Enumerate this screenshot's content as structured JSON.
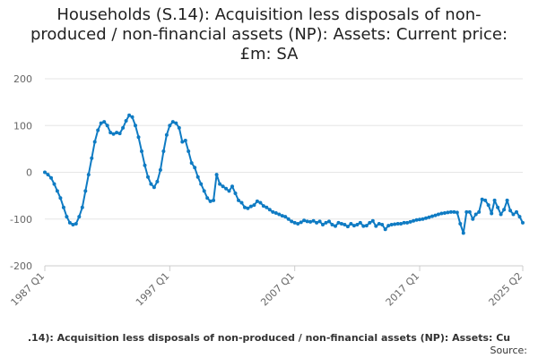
{
  "chart_data": {
    "type": "line",
    "title_lines": [
      "Households (S.14): Acquisition less disposals of non-",
      "produced / non-financial assets (NP): Assets: Current price:",
      "£m: SA"
    ],
    "bottom_caption": ".14): Acquisition less disposals of non-produced / non-financial assets (NP): Assets: Cu",
    "source_label": "Source:",
    "xlabel": "",
    "ylabel": "",
    "ylim": [
      -200,
      200
    ],
    "yticks": [
      200,
      100,
      0,
      -100,
      -200
    ],
    "x_range": [
      1987.0,
      2025.25
    ],
    "x_ticks": [
      {
        "label": "1987 Q1",
        "value": 1987.0
      },
      {
        "label": "1997 Q1",
        "value": 1997.0
      },
      {
        "label": "2007 Q1",
        "value": 2007.0
      },
      {
        "label": "2017 Q1",
        "value": 2017.0
      },
      {
        "label": "2025 Q2",
        "value": 2025.25
      }
    ],
    "grid": true,
    "legend": "none",
    "series_color": "#0f7bc3",
    "points": [
      [
        1987.0,
        0
      ],
      [
        1987.25,
        -5
      ],
      [
        1987.5,
        -12
      ],
      [
        1987.75,
        -25
      ],
      [
        1988.0,
        -40
      ],
      [
        1988.25,
        -55
      ],
      [
        1988.5,
        -75
      ],
      [
        1988.75,
        -95
      ],
      [
        1989.0,
        -108
      ],
      [
        1989.25,
        -112
      ],
      [
        1989.5,
        -110
      ],
      [
        1989.75,
        -95
      ],
      [
        1990.0,
        -75
      ],
      [
        1990.25,
        -40
      ],
      [
        1990.5,
        -5
      ],
      [
        1990.75,
        30
      ],
      [
        1991.0,
        65
      ],
      [
        1991.25,
        90
      ],
      [
        1991.5,
        105
      ],
      [
        1991.75,
        108
      ],
      [
        1992.0,
        100
      ],
      [
        1992.25,
        85
      ],
      [
        1992.5,
        82
      ],
      [
        1992.75,
        85
      ],
      [
        1993.0,
        83
      ],
      [
        1993.25,
        95
      ],
      [
        1993.5,
        110
      ],
      [
        1993.75,
        122
      ],
      [
        1994.0,
        118
      ],
      [
        1994.25,
        100
      ],
      [
        1994.5,
        75
      ],
      [
        1994.75,
        45
      ],
      [
        1995.0,
        15
      ],
      [
        1995.25,
        -10
      ],
      [
        1995.5,
        -25
      ],
      [
        1995.75,
        -32
      ],
      [
        1996.0,
        -20
      ],
      [
        1996.25,
        5
      ],
      [
        1996.5,
        45
      ],
      [
        1996.75,
        80
      ],
      [
        1997.0,
        100
      ],
      [
        1997.25,
        108
      ],
      [
        1997.5,
        105
      ],
      [
        1997.75,
        95
      ],
      [
        1998.0,
        65
      ],
      [
        1998.25,
        68
      ],
      [
        1998.5,
        45
      ],
      [
        1998.75,
        20
      ],
      [
        1999.0,
        10
      ],
      [
        1999.25,
        -10
      ],
      [
        1999.5,
        -25
      ],
      [
        1999.75,
        -40
      ],
      [
        2000.0,
        -55
      ],
      [
        2000.25,
        -62
      ],
      [
        2000.5,
        -60
      ],
      [
        2000.75,
        -5
      ],
      [
        2001.0,
        -25
      ],
      [
        2001.25,
        -30
      ],
      [
        2001.5,
        -35
      ],
      [
        2001.75,
        -40
      ],
      [
        2002.0,
        -30
      ],
      [
        2002.25,
        -45
      ],
      [
        2002.5,
        -60
      ],
      [
        2002.75,
        -65
      ],
      [
        2003.0,
        -75
      ],
      [
        2003.25,
        -77
      ],
      [
        2003.5,
        -73
      ],
      [
        2003.75,
        -70
      ],
      [
        2004.0,
        -62
      ],
      [
        2004.25,
        -65
      ],
      [
        2004.5,
        -72
      ],
      [
        2004.75,
        -75
      ],
      [
        2005.0,
        -80
      ],
      [
        2005.25,
        -85
      ],
      [
        2005.5,
        -87
      ],
      [
        2005.75,
        -90
      ],
      [
        2006.0,
        -93
      ],
      [
        2006.25,
        -95
      ],
      [
        2006.5,
        -100
      ],
      [
        2006.75,
        -105
      ],
      [
        2007.0,
        -108
      ],
      [
        2007.25,
        -110
      ],
      [
        2007.5,
        -107
      ],
      [
        2007.75,
        -103
      ],
      [
        2008.0,
        -105
      ],
      [
        2008.25,
        -106
      ],
      [
        2008.5,
        -104
      ],
      [
        2008.75,
        -108
      ],
      [
        2009.0,
        -105
      ],
      [
        2009.25,
        -112
      ],
      [
        2009.5,
        -108
      ],
      [
        2009.75,
        -105
      ],
      [
        2010.0,
        -112
      ],
      [
        2010.25,
        -115
      ],
      [
        2010.5,
        -108
      ],
      [
        2010.75,
        -110
      ],
      [
        2011.0,
        -112
      ],
      [
        2011.25,
        -116
      ],
      [
        2011.5,
        -110
      ],
      [
        2011.75,
        -114
      ],
      [
        2012.0,
        -112
      ],
      [
        2012.25,
        -108
      ],
      [
        2012.5,
        -115
      ],
      [
        2012.75,
        -114
      ],
      [
        2013.0,
        -108
      ],
      [
        2013.25,
        -104
      ],
      [
        2013.5,
        -115
      ],
      [
        2013.75,
        -110
      ],
      [
        2014.0,
        -112
      ],
      [
        2014.25,
        -122
      ],
      [
        2014.5,
        -114
      ],
      [
        2014.75,
        -112
      ],
      [
        2015.0,
        -111
      ],
      [
        2015.25,
        -110
      ],
      [
        2015.5,
        -110
      ],
      [
        2015.75,
        -108
      ],
      [
        2016.0,
        -108
      ],
      [
        2016.25,
        -106
      ],
      [
        2016.5,
        -104
      ],
      [
        2016.75,
        -102
      ],
      [
        2017.0,
        -101
      ],
      [
        2017.25,
        -100
      ],
      [
        2017.5,
        -98
      ],
      [
        2017.75,
        -96
      ],
      [
        2018.0,
        -94
      ],
      [
        2018.25,
        -92
      ],
      [
        2018.5,
        -90
      ],
      [
        2018.75,
        -88
      ],
      [
        2019.0,
        -87
      ],
      [
        2019.25,
        -86
      ],
      [
        2019.5,
        -85
      ],
      [
        2019.75,
        -85
      ],
      [
        2020.0,
        -86
      ],
      [
        2020.25,
        -110
      ],
      [
        2020.5,
        -130
      ],
      [
        2020.75,
        -85
      ],
      [
        2021.0,
        -85
      ],
      [
        2021.25,
        -100
      ],
      [
        2021.5,
        -90
      ],
      [
        2021.75,
        -85
      ],
      [
        2022.0,
        -58
      ],
      [
        2022.25,
        -60
      ],
      [
        2022.5,
        -70
      ],
      [
        2022.75,
        -88
      ],
      [
        2023.0,
        -60
      ],
      [
        2023.25,
        -75
      ],
      [
        2023.5,
        -90
      ],
      [
        2023.75,
        -80
      ],
      [
        2024.0,
        -60
      ],
      [
        2024.25,
        -82
      ],
      [
        2024.5,
        -90
      ],
      [
        2024.75,
        -85
      ],
      [
        2025.0,
        -95
      ],
      [
        2025.25,
        -108
      ]
    ]
  }
}
